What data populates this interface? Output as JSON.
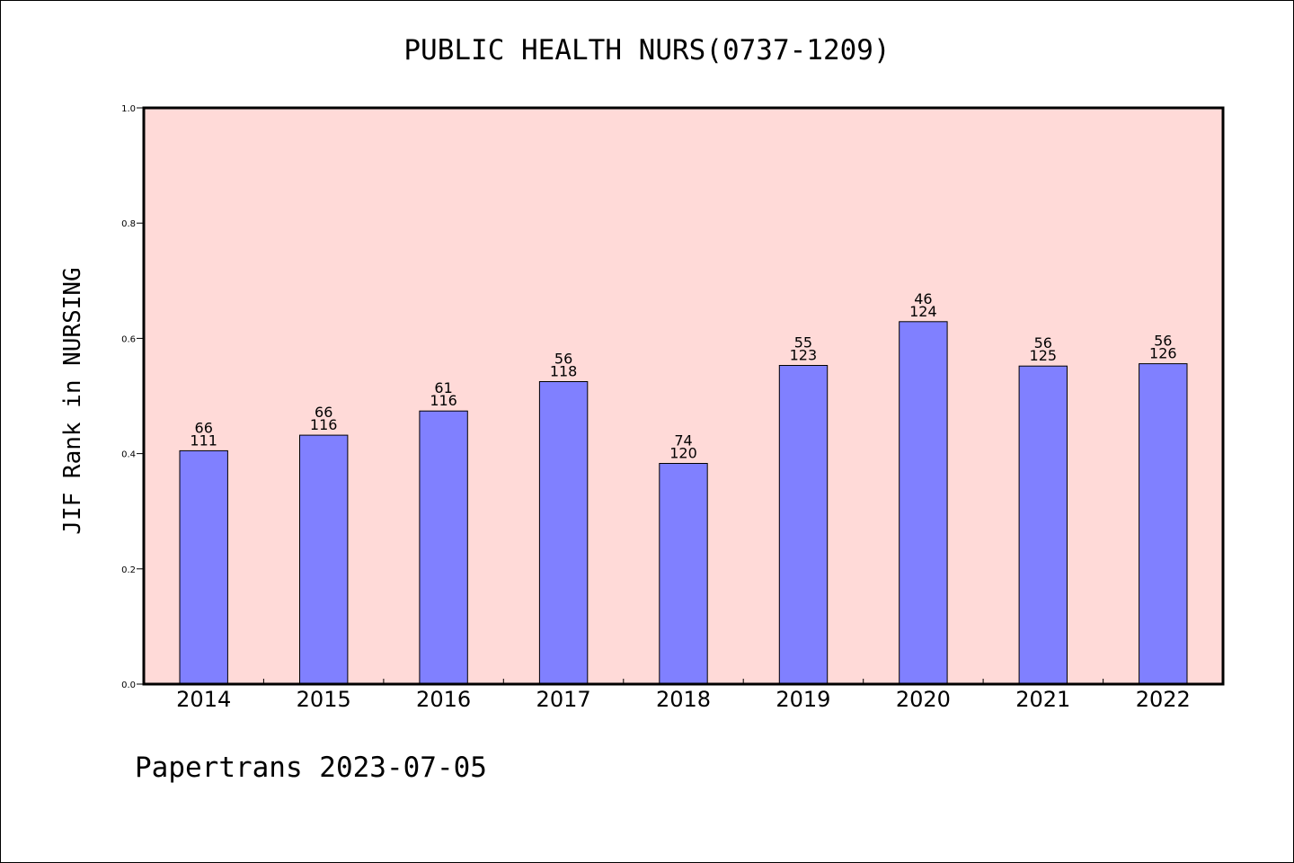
{
  "chart_data": {
    "type": "bar",
    "title": "PUBLIC HEALTH NURS(0737-1209)",
    "ylabel": "JIF Rank in NURSING",
    "xlabel": "",
    "ylim": [
      0.0,
      1.0
    ],
    "yticks": [
      "0.0",
      "0.2",
      "0.4",
      "0.6",
      "0.8",
      "1.0"
    ],
    "categories": [
      "2014",
      "2015",
      "2016",
      "2017",
      "2018",
      "2019",
      "2020",
      "2021",
      "2022"
    ],
    "values": [
      0.405,
      0.432,
      0.474,
      0.525,
      0.383,
      0.553,
      0.629,
      0.552,
      0.556
    ],
    "labels": [
      {
        "rank": "66",
        "total": "111"
      },
      {
        "rank": "66",
        "total": "116"
      },
      {
        "rank": "61",
        "total": "116"
      },
      {
        "rank": "56",
        "total": "118"
      },
      {
        "rank": "74",
        "total": "120"
      },
      {
        "rank": "55",
        "total": "123"
      },
      {
        "rank": "46",
        "total": "124"
      },
      {
        "rank": "56",
        "total": "125"
      },
      {
        "rank": "56",
        "total": "126"
      }
    ],
    "grid": false,
    "colors": {
      "plot_background": "#FFDAD8",
      "bar": "#8080FF"
    }
  },
  "footer": {
    "watermark": "Papertrans 2023-07-05"
  }
}
